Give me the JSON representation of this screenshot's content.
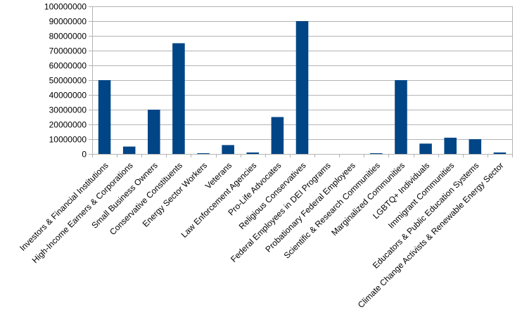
{
  "chart_data": {
    "type": "bar",
    "title": "",
    "xlabel": "",
    "ylabel": "",
    "ylim": [
      0,
      100000000
    ],
    "y_ticks": [
      "0",
      "10000000",
      "20000000",
      "30000000",
      "40000000",
      "50000000",
      "60000000",
      "70000000",
      "80000000",
      "90000000",
      "100000000"
    ],
    "grid": true,
    "legend": "none",
    "bar_color": "#004586",
    "categories": [
      "Investors & Financial Institutions",
      "High-Income Earners & Corporations",
      "Small Business Owners",
      "Conservative Constituents",
      "Energy Sector Workers",
      "Veterans",
      "Law Enforcement Agencies",
      "Pro-Life Advocates",
      "Religious Conservatives",
      "Federal Employees in DEI Programs",
      "Probationary Federal Employees",
      "Scientific & Research Communities",
      "Marginalized Communities",
      "LGBTQ+ Individuals",
      "Immigrant Communities",
      "Educators & Public Education Systems",
      "Climate Change Activists & Renewable Energy Sector"
    ],
    "values": [
      50000000,
      5000000,
      30000000,
      75000000,
      500000,
      6000000,
      1000000,
      25000000,
      90000000,
      0,
      0,
      500000,
      50000000,
      7000000,
      11000000,
      10000000,
      1000000
    ]
  }
}
